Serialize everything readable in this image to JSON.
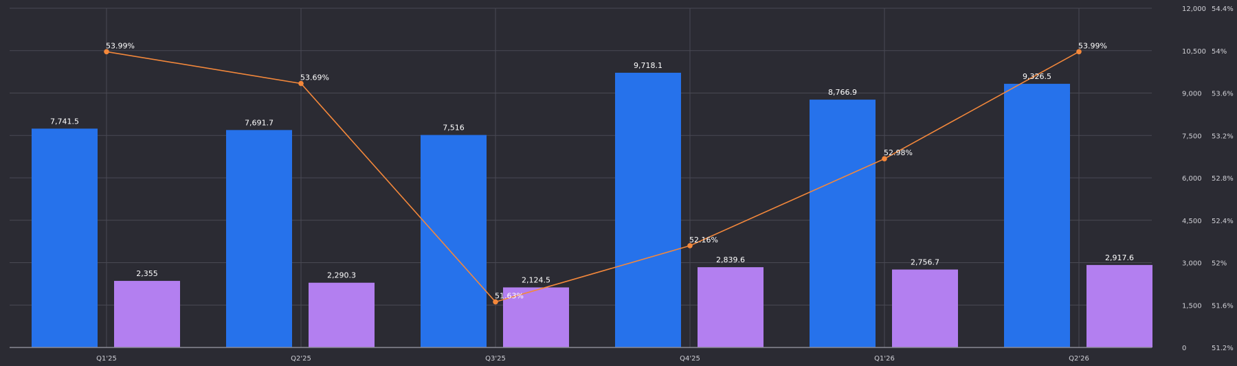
{
  "chart_data": {
    "type": "bar",
    "categories": [
      "Q1'25",
      "Q2'25",
      "Q3'25",
      "Q4'25",
      "Q1'26",
      "Q2'26"
    ],
    "series": [
      {
        "type": "bar",
        "axis": "left",
        "color": "#2672eb",
        "values": [
          7741.5,
          7691.7,
          7516,
          9718.1,
          8766.9,
          9326.5
        ],
        "labels": [
          "7,741.5",
          "7,691.7",
          "7,516",
          "9,718.1",
          "8,766.9",
          "9,326.5"
        ]
      },
      {
        "type": "bar",
        "axis": "left",
        "color": "#b37ff0",
        "values": [
          2355,
          2290.3,
          2124.5,
          2839.6,
          2756.7,
          2917.6
        ],
        "labels": [
          "2,355",
          "2,290.3",
          "2,124.5",
          "2,839.6",
          "2,756.7",
          "2,917.6"
        ]
      },
      {
        "type": "line",
        "axis": "right",
        "color": "#f4883b",
        "values": [
          53.99,
          53.69,
          51.63,
          52.16,
          52.98,
          53.99
        ],
        "labels": [
          "53.99%",
          "53.69%",
          "51.63%",
          "52.16%",
          "52.98%",
          "53.99%"
        ]
      }
    ],
    "y_left": {
      "range": [
        0,
        12000
      ],
      "ticks": [
        0,
        1500,
        3000,
        4500,
        6000,
        7500,
        9000,
        10500,
        12000
      ],
      "tick_labels": [
        "0",
        "1,500",
        "3,000",
        "4,500",
        "6,000",
        "7,500",
        "9,000",
        "10,500",
        "12,000"
      ]
    },
    "y_right": {
      "range": [
        51.2,
        54.4
      ],
      "ticks": [
        51.2,
        51.6,
        52,
        52.4,
        52.8,
        53.2,
        53.6,
        54,
        54.4
      ],
      "tick_labels": [
        "51.2%",
        "51.6%",
        "52%",
        "52.4%",
        "52.8%",
        "53.2%",
        "53.6%",
        "54%",
        "54.4%"
      ]
    },
    "grid": true,
    "legend": "none"
  }
}
